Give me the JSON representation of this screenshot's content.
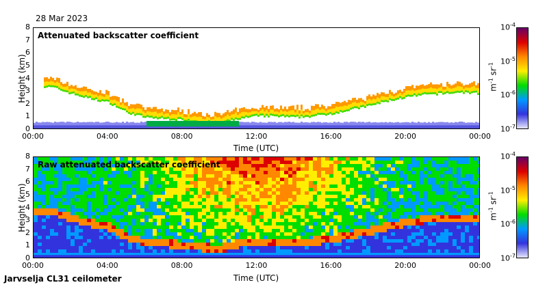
{
  "header": {
    "date": "28 Mar 2023"
  },
  "footer": {
    "instrument": "Jarvselja CL31 ceilometer"
  },
  "colors": {
    "scale": [
      "#e6e6ff",
      "#3333dd",
      "#0099ff",
      "#00dd00",
      "#ffee00",
      "#ff8800",
      "#dd0000",
      "#660066"
    ]
  },
  "chart_data": [
    {
      "type": "heatmap",
      "title": "Attenuated backscatter coefficient",
      "xlabel": "Time (UTC)",
      "ylabel": "Height (km)",
      "x_ticks": [
        "00:00",
        "04:00",
        "08:00",
        "12:00",
        "16:00",
        "20:00",
        "00:00"
      ],
      "y_ticks": [
        "0",
        "1",
        "2",
        "3",
        "4",
        "5",
        "6",
        "7",
        "8"
      ],
      "ylim": [
        0,
        8
      ],
      "xlim_hours": [
        0,
        24
      ],
      "colorbar": {
        "scale": "log",
        "range": [
          1e-07,
          0.0001
        ],
        "ticks": [
          "10",
          "10",
          "10",
          "10"
        ],
        "exponents": [
          "-4",
          "-5",
          "-6",
          "-7"
        ],
        "unit": "m",
        "unit_exp": "-1",
        "unit2": "sr",
        "unit2_exp": "-1"
      },
      "cloud_layer": {
        "hours": [
          1,
          2,
          3,
          4,
          5,
          6,
          7,
          8,
          9,
          10,
          11,
          12,
          13,
          14,
          15,
          16,
          17,
          18,
          19,
          20,
          21,
          22,
          23,
          24
        ],
        "base_km": [
          3.4,
          2.9,
          2.5,
          2.2,
          1.4,
          1.0,
          0.9,
          0.8,
          0.6,
          0.5,
          0.9,
          1.1,
          1.1,
          1.0,
          1.1,
          1.3,
          1.6,
          1.9,
          2.3,
          2.6,
          2.8,
          2.9,
          3.0,
          2.9
        ]
      }
    },
    {
      "type": "heatmap",
      "title": "Raw attenuated backscatter coefficient",
      "xlabel": "Time (UTC)",
      "ylabel": "Height (km)",
      "x_ticks": [
        "00:00",
        "04:00",
        "08:00",
        "12:00",
        "16:00",
        "20:00",
        "00:00"
      ],
      "y_ticks": [
        "0",
        "1",
        "2",
        "3",
        "4",
        "5",
        "6",
        "7",
        "8"
      ],
      "ylim": [
        0,
        8
      ],
      "xlim_hours": [
        0,
        24
      ],
      "colorbar": {
        "scale": "log",
        "range": [
          1e-07,
          0.0001
        ],
        "ticks": [
          "10",
          "10",
          "10",
          "10"
        ],
        "exponents": [
          "-4",
          "-5",
          "-6",
          "-7"
        ],
        "unit": "m",
        "unit_exp": "-1",
        "unit2": "sr",
        "unit2_exp": "-1"
      }
    }
  ]
}
